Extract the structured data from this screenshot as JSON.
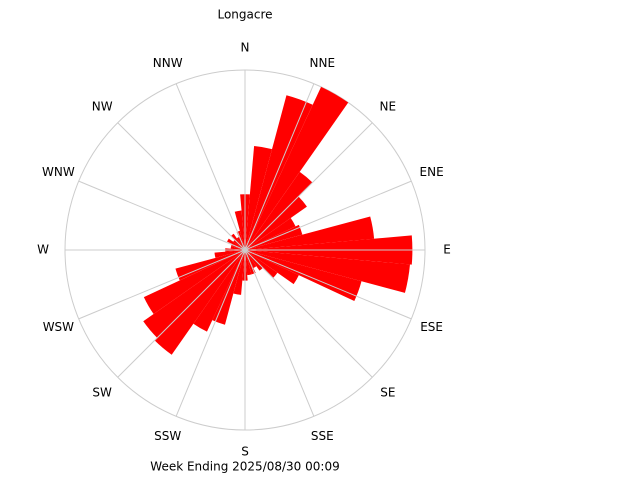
{
  "chart_data": {
    "type": "wind-rose",
    "title": "Longacre",
    "subtitle": "Week Ending 2025/08/30 00:09",
    "angle_labels": [
      "N",
      "NNE",
      "NE",
      "ENE",
      "E",
      "ESE",
      "SE",
      "SSE",
      "S",
      "SSW",
      "SW",
      "WSW",
      "W",
      "WNW",
      "NW",
      "NNW"
    ],
    "directions": [
      0,
      10,
      20,
      30,
      40,
      50,
      60,
      70,
      80,
      90,
      100,
      110,
      120,
      130,
      140,
      150,
      160,
      170,
      180,
      190,
      200,
      210,
      220,
      230,
      240,
      250,
      260,
      270,
      280,
      290,
      300,
      310,
      320,
      330,
      340,
      350
    ],
    "values": [
      31,
      58,
      89,
      100,
      53,
      42,
      31,
      33,
      72,
      93,
      92,
      67,
      33,
      22,
      14,
      11,
      14,
      14,
      17,
      25,
      43,
      50,
      71,
      69,
      62,
      40,
      17,
      11,
      8,
      8,
      11,
      8,
      11,
      8,
      11,
      22
    ],
    "color": "#ff0000",
    "rlim": [
      0,
      100
    ]
  }
}
